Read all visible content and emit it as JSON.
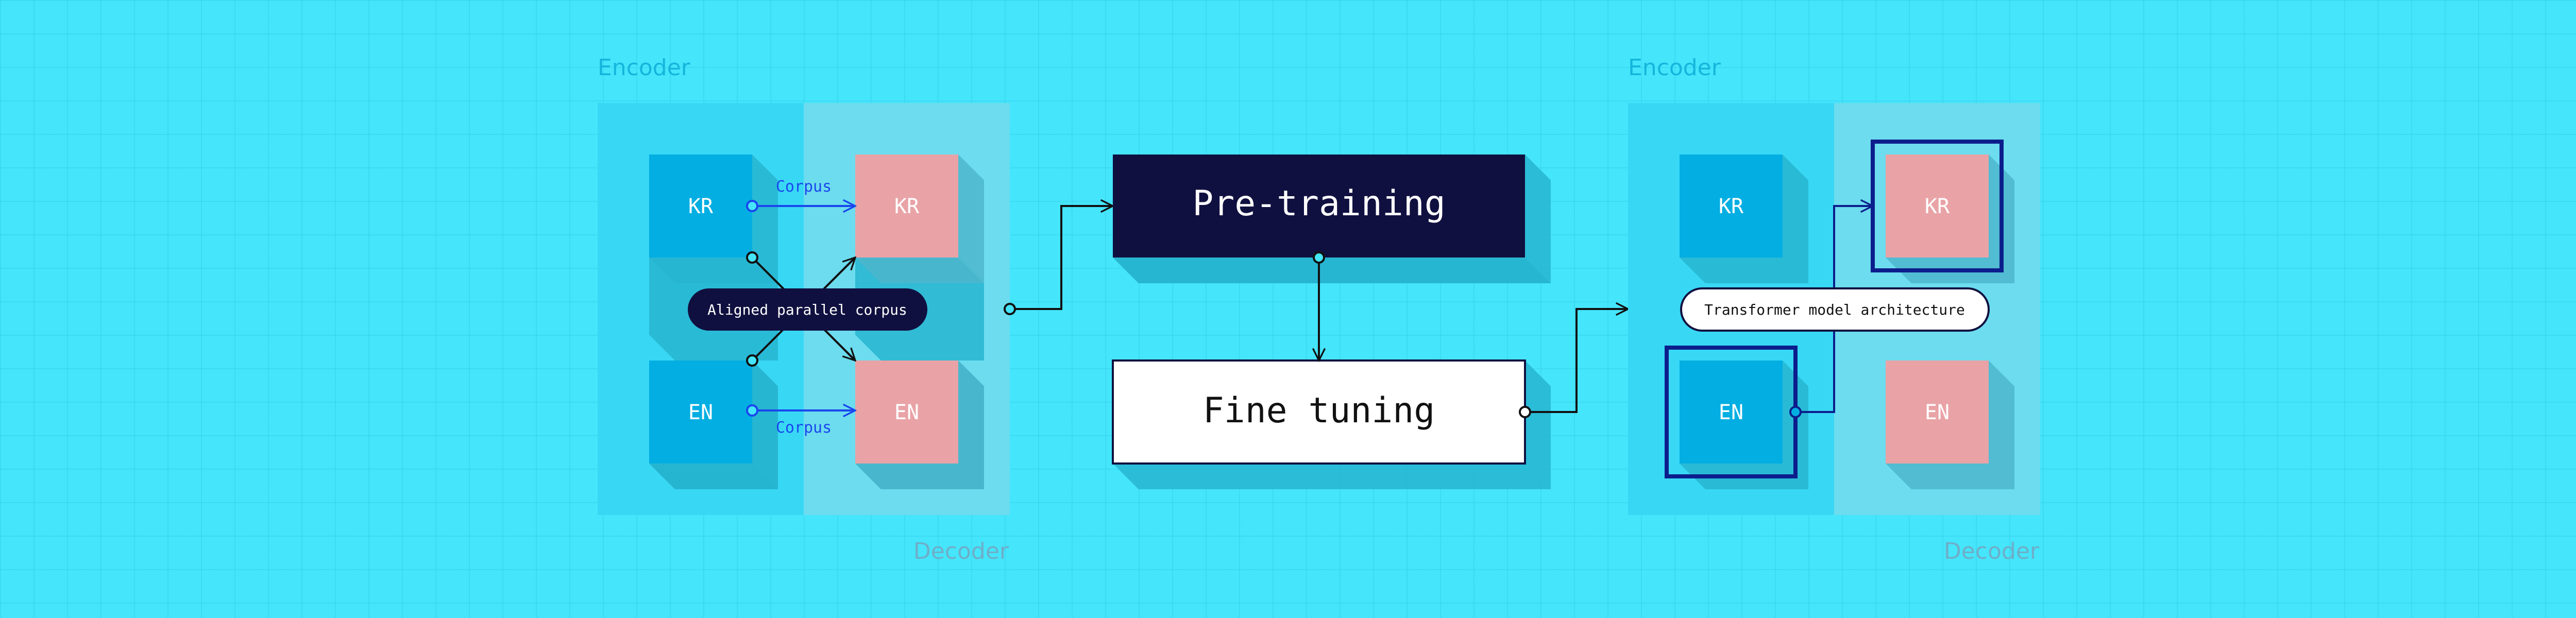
{
  "colors": {
    "background": "#45e5fb",
    "encoder_panel": "#38d8f5",
    "decoder_panel": "#6cdcee",
    "encoder_box": "#03aee2",
    "decoder_box": "#e9a3a6",
    "dark_navy": "#101040",
    "highlight": "#0c1e8c",
    "encoder_label": "#14b6dc",
    "decoder_label": "#6eaec8",
    "corpus_arrow": "#1a46ee",
    "connector": "#111111",
    "shadow": "#27b5d0"
  },
  "left_group": {
    "encoder_label": "Encoder",
    "decoder_label": "Decoder",
    "enc_kr": "KR",
    "enc_en": "EN",
    "dec_kr": "KR",
    "dec_en": "EN",
    "corpus_top": "Corpus",
    "corpus_bottom": "Corpus",
    "aligned_pill": "Aligned parallel corpus"
  },
  "middle": {
    "pretraining": "Pre-training",
    "finetuning": "Fine tuning"
  },
  "right_group": {
    "encoder_label": "Encoder",
    "decoder_label": "Decoder",
    "enc_kr": "KR",
    "enc_en": "EN",
    "dec_kr": "KR",
    "dec_en": "EN",
    "transformer_pill": "Transformer model architecture"
  }
}
